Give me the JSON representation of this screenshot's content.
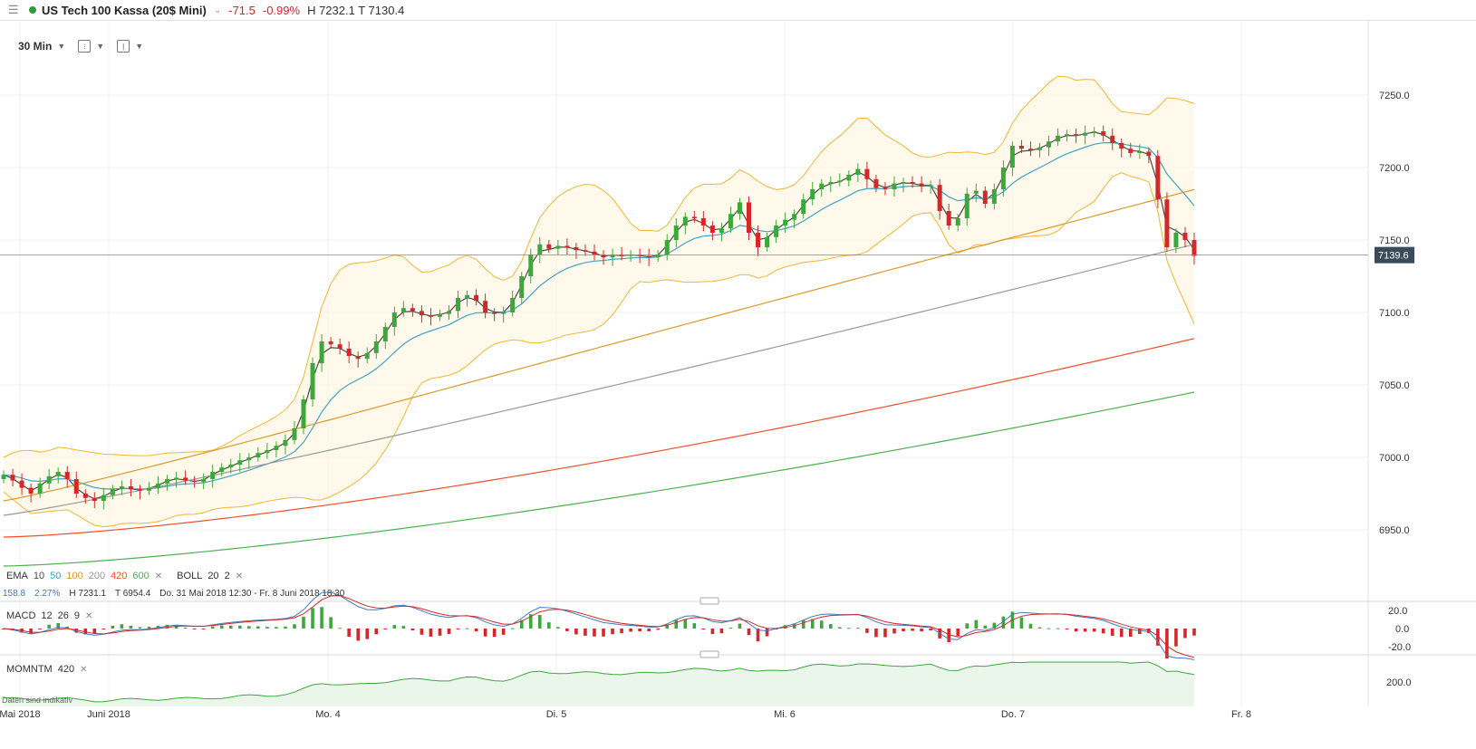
{
  "header": {
    "instrument": "US Tech 100 Kassa (20$ Mini)",
    "change": "-71.5",
    "change_pct": "-0.99%",
    "high_low": "H 7232.1  T 7130.4"
  },
  "toolbar": {
    "timeframe": "30 Min"
  },
  "indicators": {
    "ema": {
      "label": "EMA",
      "periods": [
        "10",
        "50",
        "100",
        "200",
        "420",
        "600"
      ],
      "colors": [
        "#4a4a4a",
        "#3da5c4",
        "#d99a2b",
        "#9a9a9a",
        "#f0502a",
        "#4caf50"
      ]
    },
    "boll": {
      "label": "BOLL",
      "params": [
        "20",
        "2"
      ],
      "color": "#f2b632"
    },
    "info": {
      "value": "158.8",
      "pct": "2.27%",
      "high": "H 7231.1",
      "low": "T 6954.4",
      "range": "Do. 31 Mai 2018 12:30 - Fr. 8 Juni 2018 18:30"
    },
    "macd": {
      "label": "MACD",
      "params": [
        "12",
        "26",
        "9"
      ]
    },
    "momntm": {
      "label": "MOMNTM",
      "params": [
        "420"
      ]
    },
    "disclaimer": "Daten sind indikativ"
  },
  "chart_data": {
    "type": "candlestick",
    "price_axis": {
      "ticks": [
        7250.0,
        7200.0,
        7150.0,
        7100.0,
        7050.0,
        7000.0,
        6950.0
      ],
      "tick_labels": [
        "7250.0",
        "7200.0",
        "7150.0",
        "7100.0",
        "7050.0",
        "7000.0",
        "6950.0"
      ]
    },
    "current_price": "7139.6",
    "time_axis": [
      "Mai 2018",
      "Juni 2018",
      "Mo. 4",
      "Di. 5",
      "Mi. 6",
      "Do. 7",
      "Fr. 8"
    ],
    "close_series": [
      6988,
      6984,
      6979,
      6975,
      6982,
      6987,
      6990,
      6985,
      6975,
      6972,
      6970,
      6974,
      6978,
      6980,
      6978,
      6977,
      6979,
      6982,
      6985,
      6986,
      6984,
      6983,
      6985,
      6990,
      6993,
      6995,
      6998,
      7000,
      7003,
      7005,
      7008,
      7012,
      7020,
      7040,
      7065,
      7080,
      7078,
      7075,
      7070,
      7068,
      7072,
      7080,
      7090,
      7100,
      7103,
      7101,
      7098,
      7097,
      7099,
      7101,
      7110,
      7112,
      7108,
      7100,
      7099,
      7100,
      7110,
      7125,
      7140,
      7147,
      7144,
      7146,
      7145,
      7143,
      7142,
      7140,
      7138,
      7140,
      7139,
      7140,
      7139,
      7138,
      7140,
      7150,
      7160,
      7166,
      7165,
      7160,
      7155,
      7158,
      7168,
      7176,
      7155,
      7145,
      7152,
      7160,
      7164,
      7168,
      7178,
      7185,
      7189,
      7190,
      7191,
      7195,
      7199,
      7192,
      7186,
      7185,
      7189,
      7190,
      7189,
      7187,
      7188,
      7170,
      7160,
      7165,
      7182,
      7184,
      7175,
      7185,
      7200,
      7215,
      7213,
      7212,
      7214,
      7218,
      7222,
      7223,
      7222,
      7224,
      7225,
      7222,
      7217,
      7213,
      7210,
      7211,
      7208,
      7178,
      7145,
      7155,
      7150,
      7139
    ],
    "ema_last": {
      "10": 7165,
      "50": 7192,
      "100": 7184,
      "200": 7147,
      "420": 7082,
      "600": 7045
    },
    "bollinger_last": {
      "upper": 7250,
      "middle": 7185,
      "lower": 7110
    },
    "macd": {
      "ticks": [
        "20.0",
        "0.0",
        "-20.0"
      ]
    },
    "momentum": {
      "ticks": [
        "200.0"
      ]
    }
  }
}
